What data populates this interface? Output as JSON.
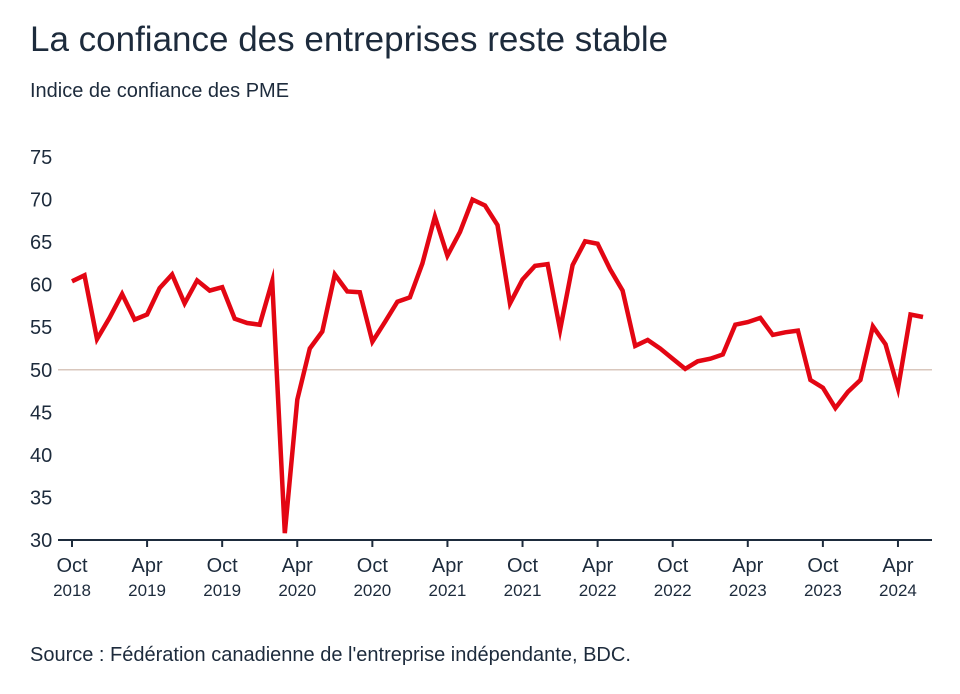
{
  "header": {
    "title": "La confiance des entreprises reste stable",
    "subtitle": "Indice de confiance des PME"
  },
  "footer": {
    "source": "Source : Fédération canadienne de l'entreprise indépendante, BDC."
  },
  "colors": {
    "series": "#e30613",
    "reference_line": "#d9c7bd",
    "axis": "#1d2b3c",
    "text": "#1d2b3c"
  },
  "chart_data": {
    "type": "line",
    "title": "La confiance des entreprises reste stable",
    "subtitle": "Indice de confiance des PME",
    "xlabel": "",
    "ylabel": "",
    "ylim": [
      30,
      75
    ],
    "y_ticks": [
      75,
      70,
      65,
      60,
      55,
      50,
      45,
      40,
      35,
      30
    ],
    "reference_line": 50,
    "grid": false,
    "x_ticks": [
      {
        "month": "Oct",
        "year": "2018",
        "index": 0
      },
      {
        "month": "Apr",
        "year": "2019",
        "index": 6
      },
      {
        "month": "Oct",
        "year": "2019",
        "index": 12
      },
      {
        "month": "Apr",
        "year": "2020",
        "index": 18
      },
      {
        "month": "Oct",
        "year": "2020",
        "index": 24
      },
      {
        "month": "Apr",
        "year": "2021",
        "index": 30
      },
      {
        "month": "Oct",
        "year": "2021",
        "index": 36
      },
      {
        "month": "Apr",
        "year": "2022",
        "index": 42
      },
      {
        "month": "Oct",
        "year": "2022",
        "index": 48
      },
      {
        "month": "Apr",
        "year": "2023",
        "index": 54
      },
      {
        "month": "Oct",
        "year": "2023",
        "index": 60
      },
      {
        "month": "Apr",
        "year": "2024",
        "index": 66
      }
    ],
    "x_count": 69,
    "series": [
      {
        "name": "Indice de confiance des PME",
        "values": [
          60.4,
          61.1,
          53.6,
          56.1,
          58.9,
          55.9,
          56.5,
          59.6,
          61.2,
          57.8,
          60.5,
          59.3,
          59.7,
          56.0,
          55.5,
          55.3,
          60.4,
          30.8,
          46.5,
          52.5,
          54.5,
          61.2,
          59.2,
          59.1,
          53.3,
          55.6,
          58.0,
          58.5,
          62.5,
          68.0,
          63.4,
          66.2,
          70.0,
          69.3,
          67.0,
          57.8,
          60.6,
          62.2,
          62.4,
          54.7,
          62.3,
          65.1,
          64.8,
          61.8,
          59.3,
          52.8,
          53.5,
          52.5,
          51.3,
          50.1,
          51.0,
          51.3,
          51.8,
          55.3,
          55.6,
          56.1,
          54.1,
          54.4,
          54.6,
          48.8,
          47.9,
          45.5,
          47.4,
          48.8,
          55.1,
          53.0,
          47.8,
          56.5,
          56.2
        ]
      }
    ]
  }
}
